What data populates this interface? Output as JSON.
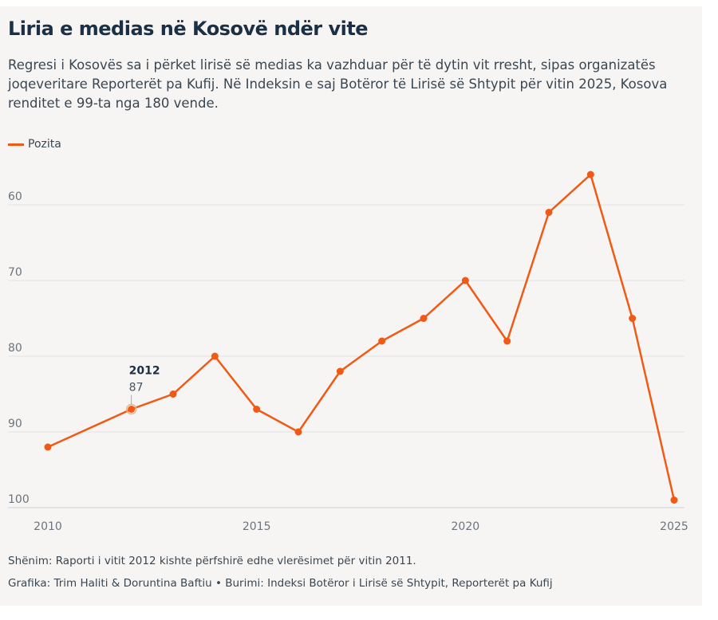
{
  "title": "Liria e medias në Kosovë ndër vite",
  "subtitle": "Regresi i Kosovës sa i përket lirisë së medias ka vazhduar për të dytin vit rresht, sipas organizatës joqeveritare Reporterët pa Kufij. Në Indeksin e saj Botëror të Lirisë së Shtypit për vitin 2025, Kosova renditet e 99-ta nga 180 vende.",
  "note": "Shënim: Raporti i vitit 2012 kishte përfshirë edhe vlerësimet për vitin 2011.",
  "credits": "Grafika: Trim Haliti & Doruntina Baftiu • Burimi: Indeksi Botëror i Lirisë së Shtypit, Reporterët pa Kufij",
  "chart_data": {
    "type": "line",
    "x": [
      2010,
      2012,
      2013,
      2014,
      2015,
      2016,
      2017,
      2018,
      2019,
      2020,
      2021,
      2022,
      2023,
      2024,
      2025
    ],
    "series": [
      {
        "name": "Pozita",
        "color": "#f05a14",
        "values": [
          92,
          87,
          85,
          80,
          87,
          90,
          82,
          78,
          75,
          70,
          78,
          61,
          56,
          75,
          99
        ]
      }
    ],
    "xlim": [
      2010,
      2025
    ],
    "ylim": [
      100,
      55
    ],
    "y_inverted": true,
    "yticks": [
      "60",
      "70",
      "80",
      "90",
      "100"
    ],
    "xticks": [
      "2010",
      "2015",
      "2020",
      "2025"
    ],
    "grid": true,
    "legend": "top-left",
    "tooltip": {
      "year": "2012",
      "value": "87"
    }
  }
}
